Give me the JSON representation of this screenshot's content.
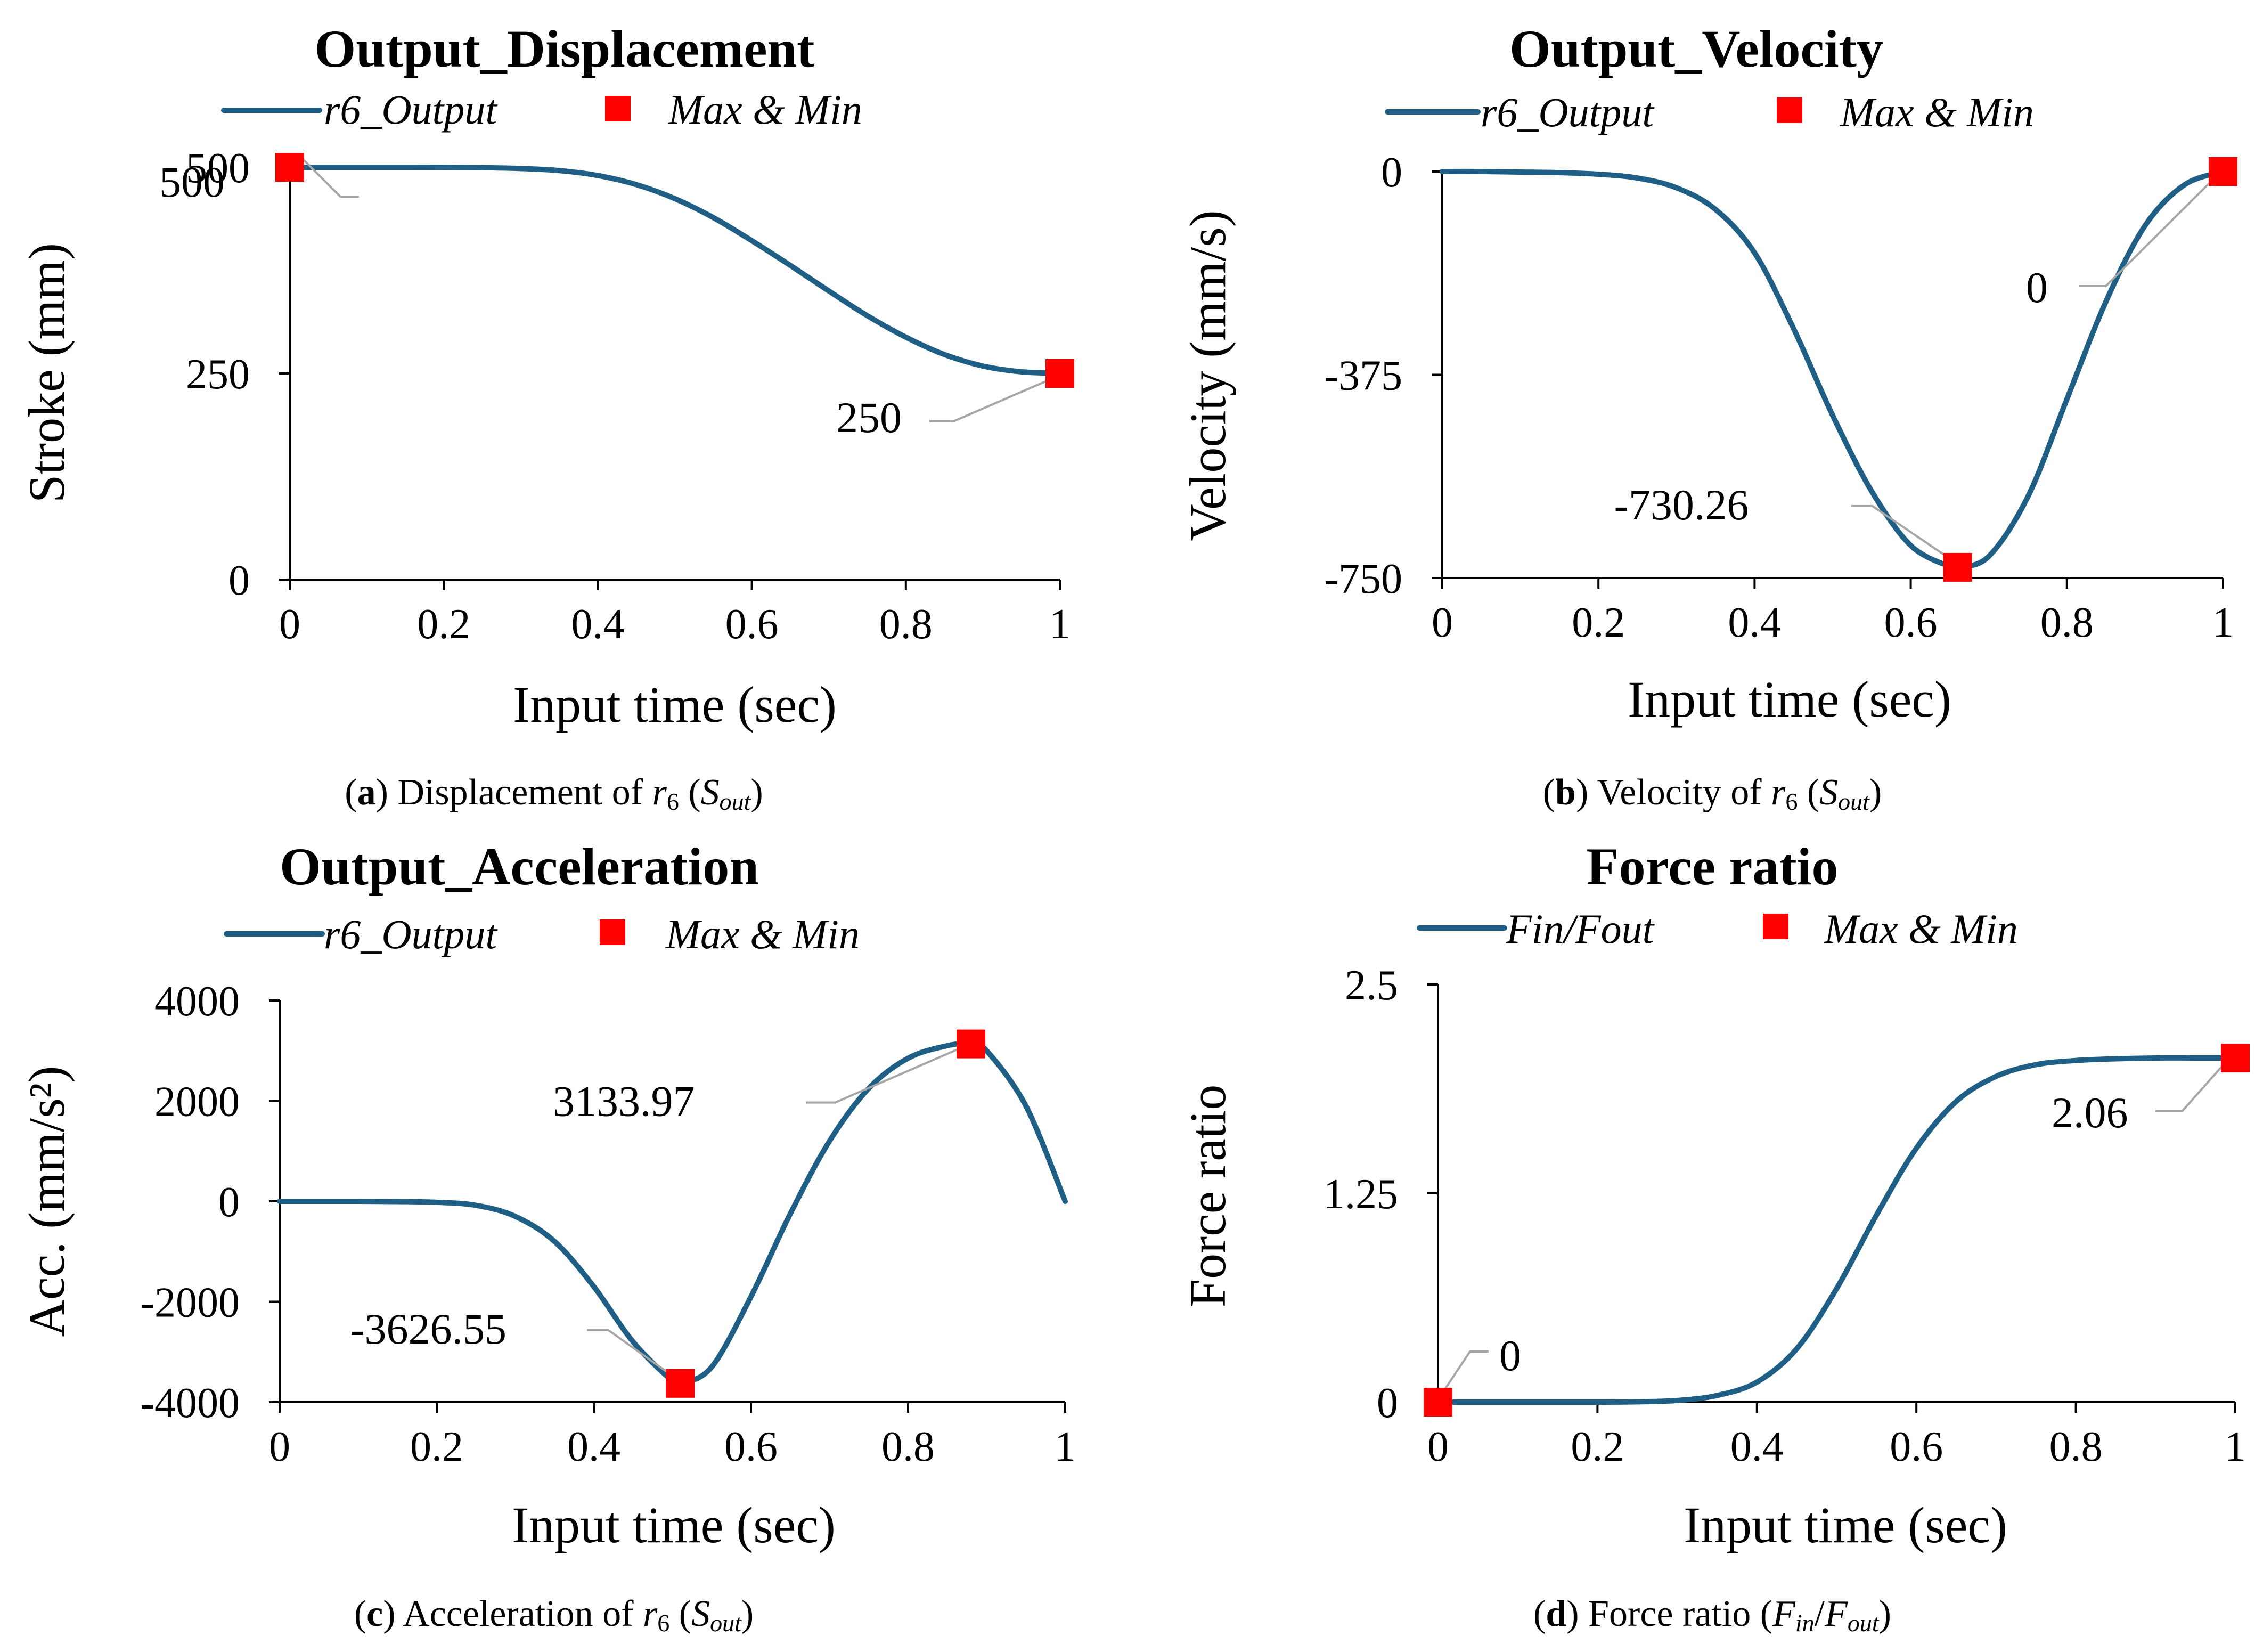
{
  "colors": {
    "curve": "#1f5f86",
    "marker": "#ff0000",
    "leader": "#a6a6a6"
  },
  "chart_data": [
    {
      "id": "a",
      "type": "line",
      "title": "Output_Displacement",
      "xlabel": "Input time (sec)",
      "ylabel": "Stroke (mm)",
      "xlim": [
        0,
        1
      ],
      "ylim": [
        0,
        500
      ],
      "xticks": [
        0,
        0.2,
        0.4,
        0.6,
        0.8,
        1
      ],
      "xtick_labels": [
        "0",
        "0.2",
        "0.4",
        "0.6",
        "0.8",
        "1"
      ],
      "yticks": [
        0,
        250,
        500
      ],
      "ytick_labels": [
        "0",
        "250",
        "500"
      ],
      "legend": {
        "series_label": "r6_Output",
        "marker_label": "Max & Min",
        "placement": "top"
      },
      "series": [
        {
          "name": "r6_Output",
          "x": [
            0,
            0.05,
            0.1,
            0.15,
            0.2,
            0.25,
            0.3,
            0.35,
            0.4,
            0.45,
            0.5,
            0.55,
            0.6,
            0.65,
            0.7,
            0.75,
            0.8,
            0.85,
            0.9,
            0.95,
            1
          ],
          "y": [
            500,
            500,
            500,
            500,
            499.9,
            499.5,
            498.5,
            496,
            490,
            479,
            462,
            439,
            411,
            381,
            350,
            320,
            294,
            273,
            259,
            252,
            250
          ]
        }
      ],
      "markers": [
        {
          "x": 0,
          "y": 500,
          "label": "500"
        },
        {
          "x": 1,
          "y": 250,
          "label": "250"
        }
      ],
      "caption": {
        "letter": "a",
        "text": ") Displacement of ",
        "var": "r",
        "var_sub": "6",
        "paren": "S",
        "paren_sub": "out"
      }
    },
    {
      "id": "b",
      "type": "line",
      "title": "Output_Velocity",
      "xlabel": "Input time (sec)",
      "ylabel": "Velocity (mm/s)",
      "xlim": [
        0,
        1
      ],
      "ylim": [
        -750,
        0
      ],
      "xticks": [
        0,
        0.2,
        0.4,
        0.6,
        0.8,
        1
      ],
      "xtick_labels": [
        "0",
        "0.2",
        "0.4",
        "0.6",
        "0.8",
        "1"
      ],
      "yticks": [
        -750,
        -375,
        0
      ],
      "ytick_labels": [
        "-750",
        "-375",
        "0"
      ],
      "legend": {
        "series_label": "r6_Output",
        "marker_label": "Max & Min",
        "placement": "top"
      },
      "series": [
        {
          "name": "r6_Output",
          "x": [
            0,
            0.05,
            0.1,
            0.15,
            0.2,
            0.25,
            0.3,
            0.35,
            0.4,
            0.45,
            0.5,
            0.55,
            0.6,
            0.65,
            0.66,
            0.7,
            0.75,
            0.8,
            0.85,
            0.9,
            0.95,
            1
          ],
          "y": [
            0,
            0,
            -1,
            -2,
            -5,
            -12,
            -30,
            -70,
            -150,
            -290,
            -450,
            -590,
            -690,
            -729,
            -730.26,
            -710,
            -600,
            -420,
            -240,
            -100,
            -25,
            0
          ]
        }
      ],
      "markers": [
        {
          "x": 0.66,
          "y": -730.26,
          "label": "-730.26"
        },
        {
          "x": 1,
          "y": 0,
          "label": "0"
        }
      ],
      "caption": {
        "letter": "b",
        "text": ") Velocity of ",
        "var": "r",
        "var_sub": "6",
        "paren": "S",
        "paren_sub": "out"
      }
    },
    {
      "id": "c",
      "type": "line",
      "title": "Output_Acceleration",
      "xlabel": "Input time (sec)",
      "ylabel": "Acc. (mm/s²)",
      "xlim": [
        0,
        1
      ],
      "ylim": [
        -4000,
        4000
      ],
      "xticks": [
        0,
        0.2,
        0.4,
        0.6,
        0.8,
        1
      ],
      "xtick_labels": [
        "0",
        "0.2",
        "0.4",
        "0.6",
        "0.8",
        "1"
      ],
      "yticks": [
        -4000,
        -2000,
        0,
        2000,
        4000
      ],
      "ytick_labels": [
        "-4000",
        "-2000",
        "0",
        "2000",
        "4000"
      ],
      "legend": {
        "series_label": "r6_Output",
        "marker_label": "Max & Min",
        "placement": "top"
      },
      "series": [
        {
          "name": "r6_Output",
          "x": [
            0,
            0.05,
            0.1,
            0.15,
            0.2,
            0.25,
            0.3,
            0.35,
            0.4,
            0.45,
            0.5,
            0.51,
            0.55,
            0.6,
            0.65,
            0.7,
            0.75,
            0.8,
            0.85,
            0.88,
            0.9,
            0.95,
            1
          ],
          "y": [
            0,
            0,
            0,
            -5,
            -20,
            -80,
            -300,
            -800,
            -1700,
            -2800,
            -3580,
            -3626.55,
            -3300,
            -1900,
            -250,
            1200,
            2250,
            2850,
            3100,
            3133.97,
            3000,
            1900,
            0
          ]
        }
      ],
      "markers": [
        {
          "x": 0.51,
          "y": -3626.55,
          "label": "-3626.55"
        },
        {
          "x": 0.88,
          "y": 3133.97,
          "label": "3133.97"
        }
      ],
      "caption": {
        "letter": "c",
        "text": ") Acceleration of ",
        "var": "r",
        "var_sub": "6",
        "paren": "S",
        "paren_sub": "out"
      }
    },
    {
      "id": "d",
      "type": "line",
      "title": "Force ratio",
      "xlabel": "Input time (sec)",
      "ylabel": "Force ratio",
      "xlim": [
        0,
        1
      ],
      "ylim": [
        0,
        2.5
      ],
      "xticks": [
        0,
        0.2,
        0.4,
        0.6,
        0.8,
        1
      ],
      "xtick_labels": [
        "0",
        "0.2",
        "0.4",
        "0.6",
        "0.8",
        "1"
      ],
      "yticks": [
        0,
        1.25,
        2.5
      ],
      "ytick_labels": [
        "0",
        "1.25",
        "2.5"
      ],
      "legend": {
        "series_label": "Fin/Fout",
        "marker_label": "Max & Min",
        "placement": "top"
      },
      "series": [
        {
          "name": "Fin/Fout",
          "x": [
            0,
            0.05,
            0.1,
            0.15,
            0.2,
            0.25,
            0.3,
            0.35,
            0.4,
            0.45,
            0.5,
            0.55,
            0.6,
            0.65,
            0.7,
            0.75,
            0.8,
            0.85,
            0.9,
            0.95,
            1
          ],
          "y": [
            0,
            0,
            0,
            0,
            0,
            0.002,
            0.01,
            0.04,
            0.12,
            0.32,
            0.68,
            1.12,
            1.52,
            1.8,
            1.95,
            2.02,
            2.045,
            2.055,
            2.06,
            2.06,
            2.06
          ]
        }
      ],
      "markers": [
        {
          "x": 0,
          "y": 0,
          "label": "0"
        },
        {
          "x": 1,
          "y": 2.06,
          "label": "2.06"
        }
      ],
      "caption": {
        "letter": "d",
        "text": ") Force ratio (",
        "var": "F",
        "var_sub": "in",
        "paren": "F",
        "paren_sub": "out",
        "sep": "/"
      }
    }
  ]
}
